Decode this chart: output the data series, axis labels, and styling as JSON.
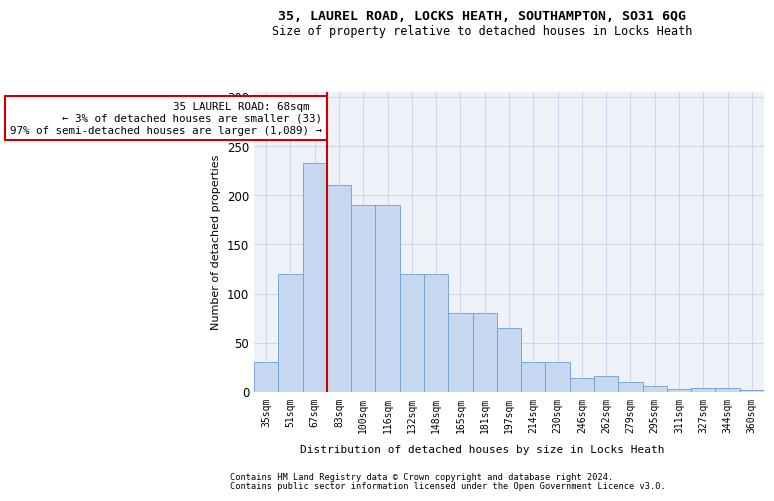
{
  "title": "35, LAUREL ROAD, LOCKS HEATH, SOUTHAMPTON, SO31 6QG",
  "subtitle": "Size of property relative to detached houses in Locks Heath",
  "xlabel": "Distribution of detached houses by size in Locks Heath",
  "ylabel": "Number of detached properties",
  "bar_color": "#c5d8f0",
  "bar_edge_color": "#6aa0d4",
  "categories": [
    "35sqm",
    "51sqm",
    "67sqm",
    "83sqm",
    "100sqm",
    "116sqm",
    "132sqm",
    "148sqm",
    "165sqm",
    "181sqm",
    "197sqm",
    "214sqm",
    "230sqm",
    "246sqm",
    "262sqm",
    "279sqm",
    "295sqm",
    "311sqm",
    "327sqm",
    "344sqm",
    "360sqm"
  ],
  "values": [
    30,
    120,
    233,
    210,
    190,
    190,
    120,
    120,
    80,
    80,
    65,
    30,
    30,
    14,
    16,
    10,
    6,
    3,
    4,
    4,
    2
  ],
  "vline_x_idx": 2,
  "annotation_text": "  35 LAUREL ROAD: 68sqm  \n← 3% of detached houses are smaller (33)\n97% of semi-detached houses are larger (1,089) →",
  "annotation_box_color": "#ffffff",
  "annotation_box_edge_color": "#cc0000",
  "vline_color": "#cc0000",
  "grid_color": "#d0d8e8",
  "footnote1": "Contains HM Land Registry data © Crown copyright and database right 2024.",
  "footnote2": "Contains public sector information licensed under the Open Government Licence v3.0.",
  "ylim": [
    0,
    305
  ],
  "yticks": [
    0,
    50,
    100,
    150,
    200,
    250,
    300
  ],
  "bg_color": "#eef2f8"
}
